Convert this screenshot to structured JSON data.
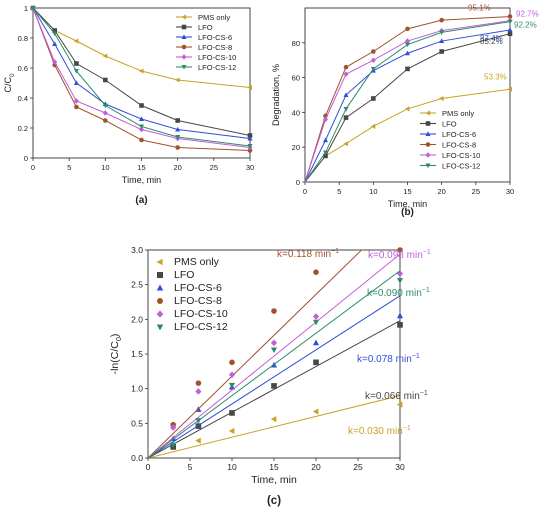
{
  "series_styles": [
    {
      "name": "PMS only",
      "color": "#c9a227",
      "marker": "triangle-left"
    },
    {
      "name": "LFO",
      "color": "#474747",
      "marker": "square"
    },
    {
      "name": "LFO-CS-6",
      "color": "#2f4fd6",
      "marker": "triangle-up"
    },
    {
      "name": "LFO-CS-8",
      "color": "#a0522d",
      "marker": "circle"
    },
    {
      "name": "LFO-CS-10",
      "color": "#c15ed8",
      "marker": "diamond"
    },
    {
      "name": "LFO-CS-12",
      "color": "#2e8b6e",
      "marker": "triangle-down"
    }
  ],
  "chart_data": [
    {
      "type": "line",
      "panel_label": "(a)",
      "xlabel": "Time, min",
      "ylabel_base": "C/C",
      "ylabel_sub": "0",
      "xlim": [
        0,
        30
      ],
      "ylim": [
        0,
        1.0
      ],
      "xticks": [
        0,
        5,
        10,
        15,
        20,
        25,
        30
      ],
      "yticks": [
        0,
        0.2,
        0.4,
        0.6,
        0.8,
        1.0
      ],
      "ytick_labels": [
        "0",
        "0.2",
        "0.4",
        "0.6",
        "0.8",
        "1"
      ],
      "legend_position": "top-right",
      "x": [
        0,
        3,
        6,
        10,
        15,
        20,
        30
      ],
      "series": [
        {
          "name": "PMS only",
          "values": [
            1.0,
            0.85,
            0.78,
            0.68,
            0.58,
            0.52,
            0.47
          ]
        },
        {
          "name": "LFO",
          "values": [
            1.0,
            0.85,
            0.63,
            0.52,
            0.35,
            0.25,
            0.15
          ]
        },
        {
          "name": "LFO-CS-6",
          "values": [
            1.0,
            0.76,
            0.5,
            0.36,
            0.26,
            0.19,
            0.13
          ]
        },
        {
          "name": "LFO-CS-8",
          "values": [
            1.0,
            0.62,
            0.34,
            0.25,
            0.12,
            0.07,
            0.05
          ]
        },
        {
          "name": "LFO-CS-10",
          "values": [
            1.0,
            0.64,
            0.38,
            0.3,
            0.19,
            0.13,
            0.07
          ]
        },
        {
          "name": "LFO-CS-12",
          "values": [
            1.0,
            0.83,
            0.58,
            0.35,
            0.21,
            0.14,
            0.08
          ]
        }
      ]
    },
    {
      "type": "line",
      "panel_label": "(b)",
      "xlabel": "Time, min",
      "ylabel": "Degradation, %",
      "xlim": [
        0,
        30
      ],
      "ylim": [
        0,
        100
      ],
      "xticks": [
        0,
        5,
        10,
        15,
        20,
        25,
        30
      ],
      "yticks": [
        0,
        20,
        40,
        60,
        80
      ],
      "legend_position": "bottom-right",
      "x": [
        3,
        6,
        10,
        15,
        20,
        30
      ],
      "series": [
        {
          "name": "PMS only",
          "values": [
            15,
            22,
            32,
            42,
            48,
            53.3
          ]
        },
        {
          "name": "LFO",
          "values": [
            15,
            37,
            48,
            65,
            75,
            85.2
          ]
        },
        {
          "name": "LFO-CS-6",
          "values": [
            24,
            50,
            64,
            74,
            81,
            87.4
          ]
        },
        {
          "name": "LFO-CS-8",
          "values": [
            38,
            66,
            75,
            88,
            93,
            95.1
          ]
        },
        {
          "name": "LFO-CS-10",
          "values": [
            36,
            62,
            70,
            81,
            87,
            92.7
          ]
        },
        {
          "name": "LFO-CS-12",
          "values": [
            17,
            42,
            65,
            79,
            86,
            92.2
          ]
        }
      ],
      "annotations": [
        {
          "text": "95.1%",
          "series": "LFO-CS-8"
        },
        {
          "text": "92.7%",
          "series": "LFO-CS-10"
        },
        {
          "text": "92.2%",
          "series": "LFO-CS-12"
        },
        {
          "text": "87.4%",
          "series": "LFO-CS-6"
        },
        {
          "text": "85.2%",
          "series": "LFO"
        },
        {
          "text": "53.3%",
          "series": "PMS only"
        }
      ]
    },
    {
      "type": "scatter",
      "panel_label": "(c)",
      "xlabel": "Time, min",
      "ylabel_base": "-ln(C/C",
      "ylabel_sub": "0",
      "ylabel_tail": ")",
      "xlim": [
        0,
        30
      ],
      "ylim": [
        0,
        3.0
      ],
      "xticks": [
        0,
        5,
        10,
        15,
        20,
        25,
        30
      ],
      "yticks": [
        0,
        0.5,
        1.0,
        1.5,
        2.0,
        2.5,
        3.0
      ],
      "ytick_labels": [
        "0.0",
        "0.5",
        "1.0",
        "1.5",
        "2.0",
        "2.5",
        "3.0"
      ],
      "legend_position": "top-left",
      "x": [
        3,
        6,
        10,
        15,
        20,
        30
      ],
      "series": [
        {
          "name": "PMS only",
          "values": [
            0.16,
            0.25,
            0.39,
            0.56,
            0.67,
            0.77
          ],
          "k": 0.03,
          "k_label": "k=0.030 min"
        },
        {
          "name": "LFO",
          "values": [
            0.16,
            0.46,
            0.65,
            1.04,
            1.38,
            1.92
          ],
          "k": 0.066,
          "k_label": "k=0.066 min"
        },
        {
          "name": "LFO-CS-6",
          "values": [
            0.28,
            0.7,
            1.02,
            1.34,
            1.66,
            2.05
          ],
          "k": 0.078,
          "k_label": "k=0.078 min"
        },
        {
          "name": "LFO-CS-8",
          "values": [
            0.48,
            1.08,
            1.38,
            2.12,
            2.68,
            3.0
          ],
          "k": 0.118,
          "k_label": "k=0.118 min"
        },
        {
          "name": "LFO-CS-10",
          "values": [
            0.44,
            0.96,
            1.2,
            1.66,
            2.04,
            2.66
          ],
          "k": 0.098,
          "k_label": "k=0.098 min"
        },
        {
          "name": "LFO-CS-12",
          "values": [
            0.19,
            0.54,
            1.05,
            1.56,
            1.96,
            2.56
          ],
          "k": 0.09,
          "k_label": "k=0.090 min"
        }
      ],
      "k_unit_sup": "−1"
    }
  ]
}
